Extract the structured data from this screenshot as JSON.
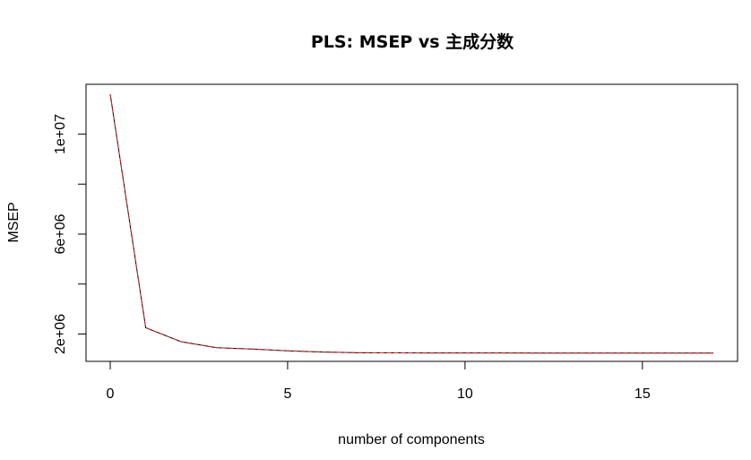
{
  "chart_data": {
    "type": "line",
    "title": "PLS: MSEP vs 主成分数",
    "xlabel": "number of components",
    "ylabel": "MSEP",
    "xlim": [
      0,
      17
    ],
    "ylim": [
      1300000,
      11600000
    ],
    "xticks": [
      0,
      5,
      10,
      15
    ],
    "xtick_labels": [
      "0",
      "5",
      "10",
      "15"
    ],
    "yticks": [
      2000000,
      6000000,
      10000000
    ],
    "ytick_labels": [
      "2e+06",
      "6e+06",
      "1e+07"
    ],
    "grid": false,
    "series": [
      {
        "color": "#000000",
        "dash": "solid",
        "x": [
          0,
          1,
          2,
          3,
          4,
          5,
          6,
          7,
          8,
          9,
          10,
          11,
          12,
          13,
          14,
          15,
          16,
          17
        ],
        "y": [
          11600000,
          2250000,
          1690000,
          1450000,
          1400000,
          1330000,
          1280000,
          1250000,
          1245000,
          1243000,
          1242000,
          1241000,
          1240000,
          1240000,
          1240000,
          1240000,
          1240000,
          1240000
        ]
      },
      {
        "color": "#d62728",
        "dash": "dashed",
        "x": [
          0,
          1,
          2,
          3,
          4,
          5,
          6,
          7,
          8,
          9,
          10,
          11,
          12,
          13,
          14,
          15,
          16,
          17
        ],
        "y": [
          11600000,
          2250000,
          1690000,
          1450000,
          1400000,
          1330000,
          1280000,
          1250000,
          1245000,
          1243000,
          1242000,
          1241000,
          1240000,
          1240000,
          1240000,
          1240000,
          1240000,
          1240000
        ]
      }
    ]
  }
}
